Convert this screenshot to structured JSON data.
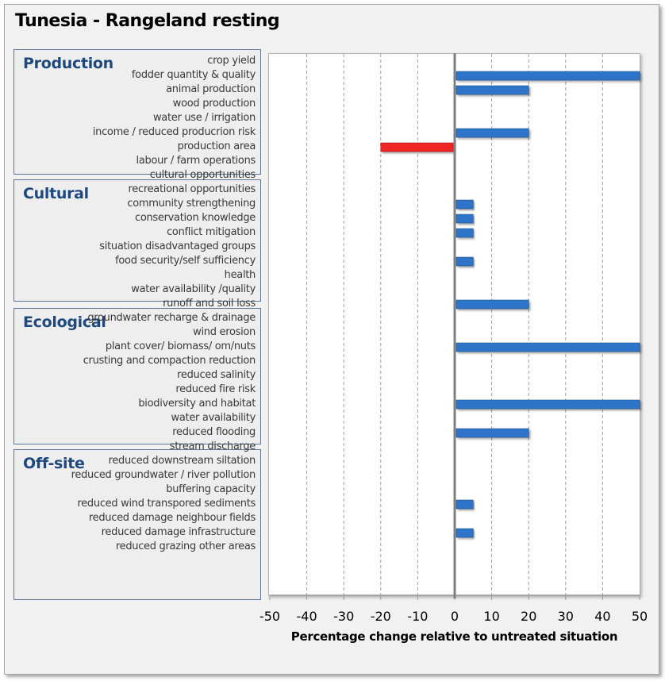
{
  "chart_data": {
    "type": "bar",
    "orientation": "horizontal",
    "title": "Tunesia - Rangeland resting",
    "xlabel": "Percentage change relative to untreated situation",
    "ylabel": "",
    "xlim": [
      -50,
      50
    ],
    "xticks": [
      -50,
      -40,
      -30,
      -20,
      -10,
      0,
      10,
      20,
      30,
      40,
      50
    ],
    "grid": "vertical dashed",
    "colors": {
      "positive": "#2e75c9",
      "negative": "#f02828",
      "zero_line": "#7f7f7f"
    },
    "groups": [
      {
        "name": "Production",
        "categories": [
          "crop yield",
          "fodder quantity & quality",
          "animal production",
          "wood production",
          "water use / irrigation",
          "income / reduced producrion risk",
          "production area",
          "labour / farm operations"
        ],
        "values": [
          0,
          50,
          20,
          0,
          0,
          20,
          -20,
          0
        ]
      },
      {
        "name": "Cultural",
        "categories": [
          "cultural opportunities",
          "recreational opportunities",
          "community strengthening",
          "conservation knowledge",
          "conflict mitigation",
          "situation disadvantaged groups",
          "food security/self sufficiency",
          "health"
        ],
        "values": [
          0,
          0,
          5,
          5,
          5,
          0,
          5,
          0
        ]
      },
      {
        "name": "Ecological",
        "categories": [
          "water availability /quality",
          "runoff and soil loss",
          "groundwater recharge & drainage",
          "wind erosion",
          "plant cover/ biomass/ om/nuts",
          "crusting and compaction reduction",
          "reduced salinity",
          "reduced fire risk",
          "biodiversity and habitat"
        ],
        "values": [
          0,
          20,
          0,
          0,
          50,
          0,
          0,
          0,
          50
        ]
      },
      {
        "name": "Off-site",
        "categories": [
          "water availability",
          "reduced flooding",
          "stream discharge",
          "reduced downstream siltation",
          "reduced groundwater / river pollution",
          "buffering capacity",
          "reduced wind transpored sediments",
          "reduced damage neighbour fields",
          "reduced damage infrastructure",
          "reduced grazing other areas"
        ],
        "values": [
          0,
          20,
          0,
          0,
          0,
          0,
          5,
          0,
          5,
          0
        ]
      }
    ]
  }
}
